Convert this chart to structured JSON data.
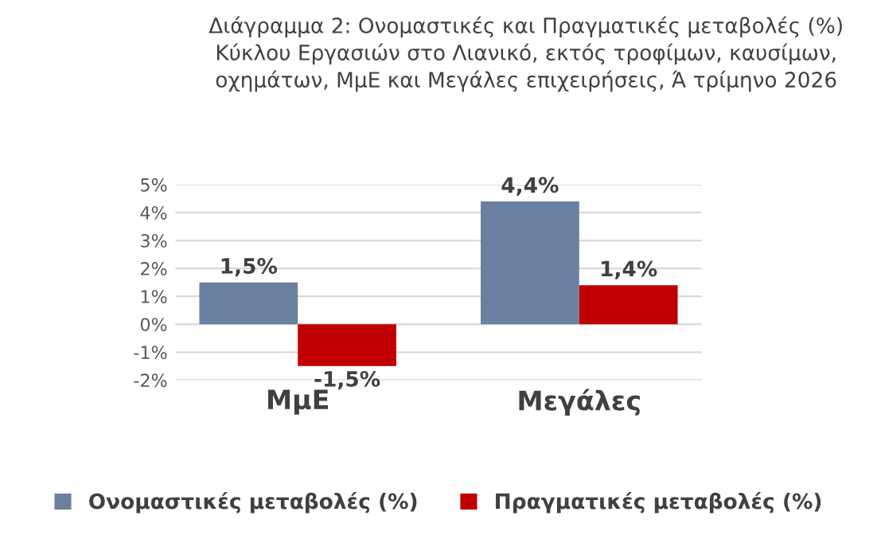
{
  "chart_data": {
    "type": "bar",
    "title": "Διάγραμμα 2: Ονομαστικές και Πραγματικές μεταβολές (%) Κύκλου Εργασιών στο Λιανικό, εκτός τροφίμων, καυσίμων, οχημάτων, ΜμΕ και Μεγάλες επιχειρήσεις, Ά τρίμηνο 2026",
    "categories": [
      "ΜμΕ",
      "Μεγάλες"
    ],
    "series": [
      {
        "name": "Ονομαστικές μεταβολές (%)",
        "color": "#6a80a0",
        "values": [
          1.5,
          4.4
        ],
        "value_labels": [
          "1,5%",
          "4,4%"
        ]
      },
      {
        "name": "Πραγματικές μεταβολές (%)",
        "color": "#c00000",
        "values": [
          -1.5,
          1.4
        ],
        "value_labels": [
          "-1,5%",
          "1,4%"
        ]
      }
    ],
    "ylim": [
      -2,
      5
    ],
    "yticks": [
      {
        "value": -2,
        "label": "-2%"
      },
      {
        "value": -1,
        "label": "-1%"
      },
      {
        "value": 0,
        "label": "0%"
      },
      {
        "value": 1,
        "label": "1%"
      },
      {
        "value": 2,
        "label": "2%"
      },
      {
        "value": 3,
        "label": "3%"
      },
      {
        "value": 4,
        "label": "4%"
      },
      {
        "value": 5,
        "label": "5%"
      }
    ],
    "grid": "y",
    "legend": "bottom"
  }
}
